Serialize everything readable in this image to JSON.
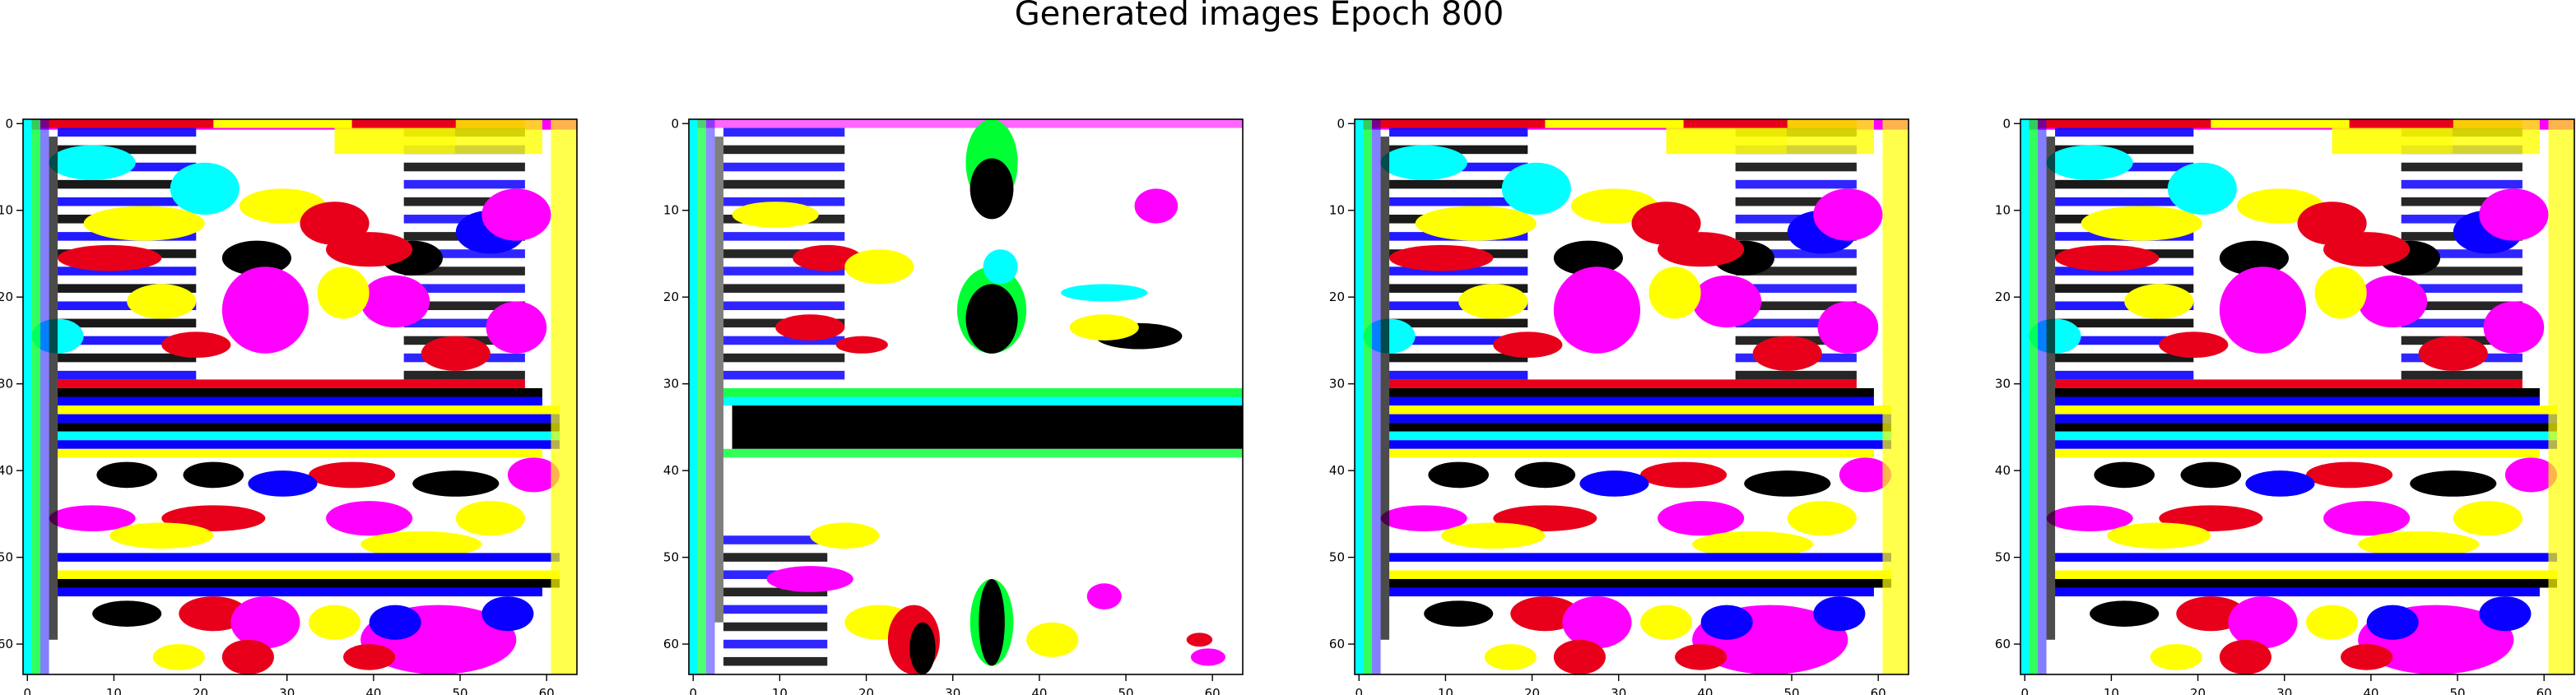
{
  "figure": {
    "title": "Generated images Epoch 800"
  },
  "chart_data": [
    {
      "type": "heatmap",
      "variant": "A",
      "xlim": [
        0,
        63
      ],
      "ylim": [
        63,
        0
      ],
      "xticks": [
        0,
        10,
        20,
        30,
        40,
        50,
        60
      ],
      "yticks": [
        0,
        10,
        20,
        30,
        40,
        50,
        60
      ],
      "grid": false
    },
    {
      "type": "heatmap",
      "variant": "B",
      "xlim": [
        0,
        63
      ],
      "ylim": [
        63,
        0
      ],
      "xticks": [
        0,
        10,
        20,
        30,
        40,
        50,
        60
      ],
      "yticks": [
        0,
        10,
        20,
        30,
        40,
        50,
        60
      ],
      "grid": false
    },
    {
      "type": "heatmap",
      "variant": "A",
      "xlim": [
        0,
        63
      ],
      "ylim": [
        63,
        0
      ],
      "xticks": [
        0,
        10,
        20,
        30,
        40,
        50,
        60
      ],
      "yticks": [
        0,
        10,
        20,
        30,
        40,
        50,
        60
      ],
      "grid": false
    },
    {
      "type": "heatmap",
      "variant": "A",
      "xlim": [
        0,
        63
      ],
      "ylim": [
        63,
        0
      ],
      "xticks": [
        0,
        10,
        20,
        30,
        40,
        50,
        60
      ],
      "yticks": [
        0,
        10,
        20,
        30,
        40,
        50,
        60
      ],
      "grid": false
    }
  ],
  "colors": {
    "white": "#ffffff",
    "black": "#000000",
    "red": "#e8001a",
    "yellow": "#ffff00",
    "cyan": "#00ffff",
    "blue": "#0a00ff",
    "magenta": "#ff00ff",
    "green": "#00ff33",
    "pink": "#ff9cff"
  }
}
